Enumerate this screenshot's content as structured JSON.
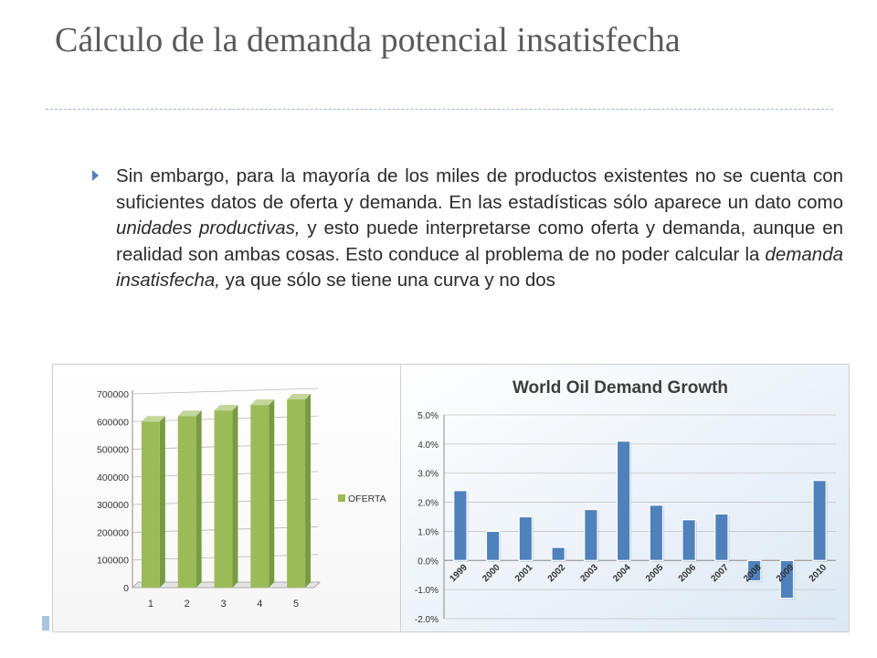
{
  "slide": {
    "title": "Cálculo de la demanda potencial insatisfecha",
    "bullet": {
      "t1": "Sin embargo, para la mayoría de los miles de productos existentes no se cuenta con suficientes datos de oferta y demanda. En las estadísticas sólo aparece un dato como ",
      "t2": "unidades productivas,",
      "t3": " y esto puede interpretarse como oferta y demanda, aunque en realidad son ambas cosas. Esto conduce al problema de no poder calcular la ",
      "t4": "demanda insatisfecha,",
      "t5": " ya que sólo se tiene una curva y no dos"
    },
    "colors": {
      "title": "#5a5a5a",
      "accent": "#4f81bd",
      "bar_green": "#9bbb59",
      "bar_blue": "#4f81bd"
    }
  },
  "chart_data": [
    {
      "type": "bar",
      "title": "",
      "categories": [
        "1",
        "2",
        "3",
        "4",
        "5"
      ],
      "series": [
        {
          "name": "OFERTA",
          "values": [
            600000,
            620000,
            640000,
            660000,
            680000
          ]
        }
      ],
      "ylim": [
        0,
        700000
      ],
      "yticks": [
        "0",
        "100000",
        "200000",
        "300000",
        "400000",
        "500000",
        "600000",
        "700000"
      ],
      "legend": "right",
      "grid": true
    },
    {
      "type": "bar",
      "title": "World Oil Demand Growth",
      "categories": [
        "1999",
        "2000",
        "2001",
        "2002",
        "2003",
        "2004",
        "2005",
        "2006",
        "2007",
        "2008",
        "2009",
        "2010"
      ],
      "values": [
        2.4,
        1.0,
        1.5,
        0.45,
        1.75,
        4.1,
        1.9,
        1.4,
        1.6,
        -0.7,
        -1.3,
        2.75
      ],
      "ylim": [
        -2.0,
        5.0
      ],
      "yticks": [
        "-2.0%",
        "-1.0%",
        "0.0%",
        "1.0%",
        "2.0%",
        "3.0%",
        "4.0%",
        "5.0%"
      ],
      "grid": true
    }
  ]
}
